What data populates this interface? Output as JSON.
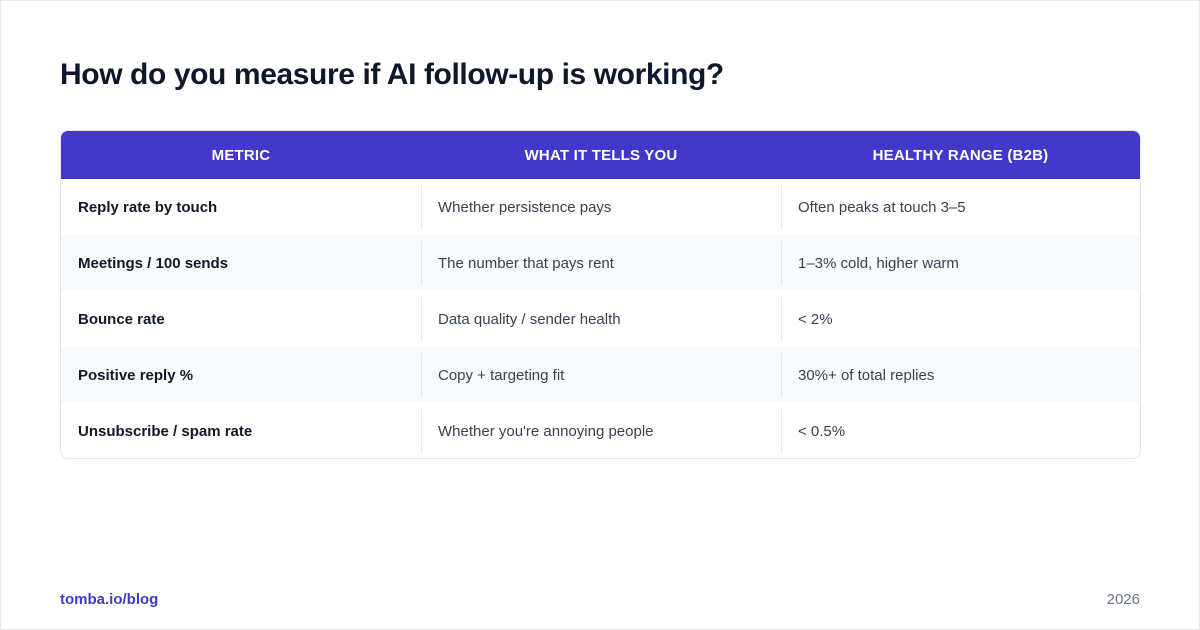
{
  "title": "How do you measure if AI follow-up is working?",
  "table": {
    "headers": [
      "METRIC",
      "WHAT IT TELLS YOU",
      "HEALTHY RANGE (B2B)"
    ],
    "rows": [
      [
        "Reply rate by touch",
        "Whether persistence pays",
        "Often peaks at touch 3–5"
      ],
      [
        "Meetings / 100 sends",
        "The number that pays rent",
        "1–3% cold, higher warm"
      ],
      [
        "Bounce rate",
        "Data quality / sender health",
        "< 2%"
      ],
      [
        "Positive reply %",
        "Copy + targeting fit",
        "30%+ of total replies"
      ],
      [
        "Unsubscribe / spam rate",
        "Whether you're annoying people",
        "< 0.5%"
      ]
    ]
  },
  "footer": {
    "site": "tomba.io/blog",
    "year": "2026"
  },
  "colors": {
    "accent": "#4338ca",
    "row_alt": "#f8fafc",
    "text": "#111827"
  }
}
